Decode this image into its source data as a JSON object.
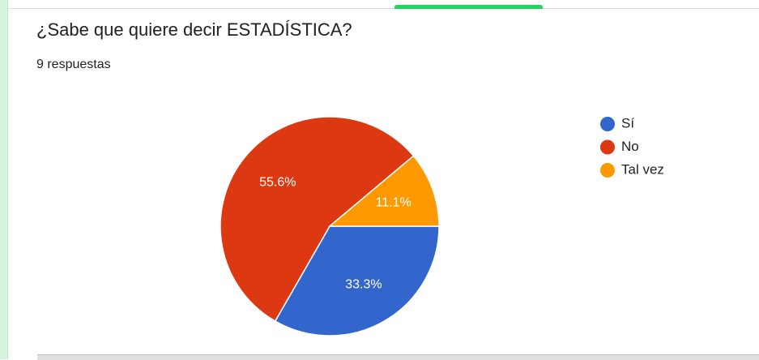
{
  "question": {
    "title": "¿Sabe que quiere decir ESTADÍSTICA?",
    "responses": "9 respuestas"
  },
  "chart_data": {
    "type": "pie",
    "categories": [
      "Sí",
      "No",
      "Tal vez"
    ],
    "values": [
      33.3,
      55.6,
      11.1
    ],
    "labels": [
      "33.3%",
      "55.6%",
      "11.1%"
    ],
    "colors": [
      "#3366cc",
      "#dc3912",
      "#ff9900"
    ],
    "legend": "right"
  }
}
